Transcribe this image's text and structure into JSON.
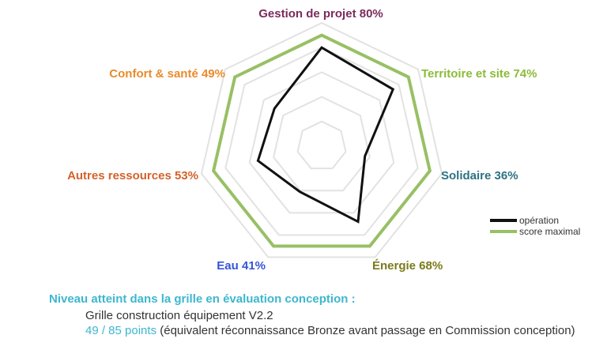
{
  "chart_data": {
    "type": "radar",
    "max": 100,
    "axes": [
      {
        "label": "Gestion de projet 80%",
        "color": "#7a2a5b",
        "value": 80,
        "max_value": 90
      },
      {
        "label": "Territoire et site 74%",
        "color": "#8dbb3a",
        "value": 74,
        "max_value": 90
      },
      {
        "label": "Solidaire 36%",
        "color": "#2e7283",
        "value": 36,
        "max_value": 90
      },
      {
        "label": "Énergie 68%",
        "color": "#7a7a1a",
        "value": 68,
        "max_value": 90
      },
      {
        "label": "Eau 41%",
        "color": "#3654d8",
        "value": 41,
        "max_value": 90
      },
      {
        "label": "Autres ressources 53%",
        "color": "#d4622a",
        "value": 53,
        "max_value": 90
      },
      {
        "label": "Confort & santé 49%",
        "color": "#e98b2b",
        "value": 49,
        "max_value": 90
      }
    ],
    "series": [
      {
        "name": "opération",
        "color": "#111111",
        "values": [
          80,
          74,
          36,
          68,
          41,
          53,
          49
        ]
      },
      {
        "name": "score maximal",
        "color": "#98c064",
        "values": [
          90,
          90,
          90,
          90,
          90,
          90,
          90
        ]
      }
    ],
    "grid_rings": 5,
    "grid_color": "#e2e2e2",
    "legend_position": "bottom-right"
  },
  "footer": {
    "heading": "Niveau atteint dans la grille en évaluation conception :",
    "grid_version": "Grille construction équipement V2.2",
    "points": "49 / 85 points",
    "note": " (équivalent réconnaissance Bronze avant passage en Commission conception)"
  }
}
